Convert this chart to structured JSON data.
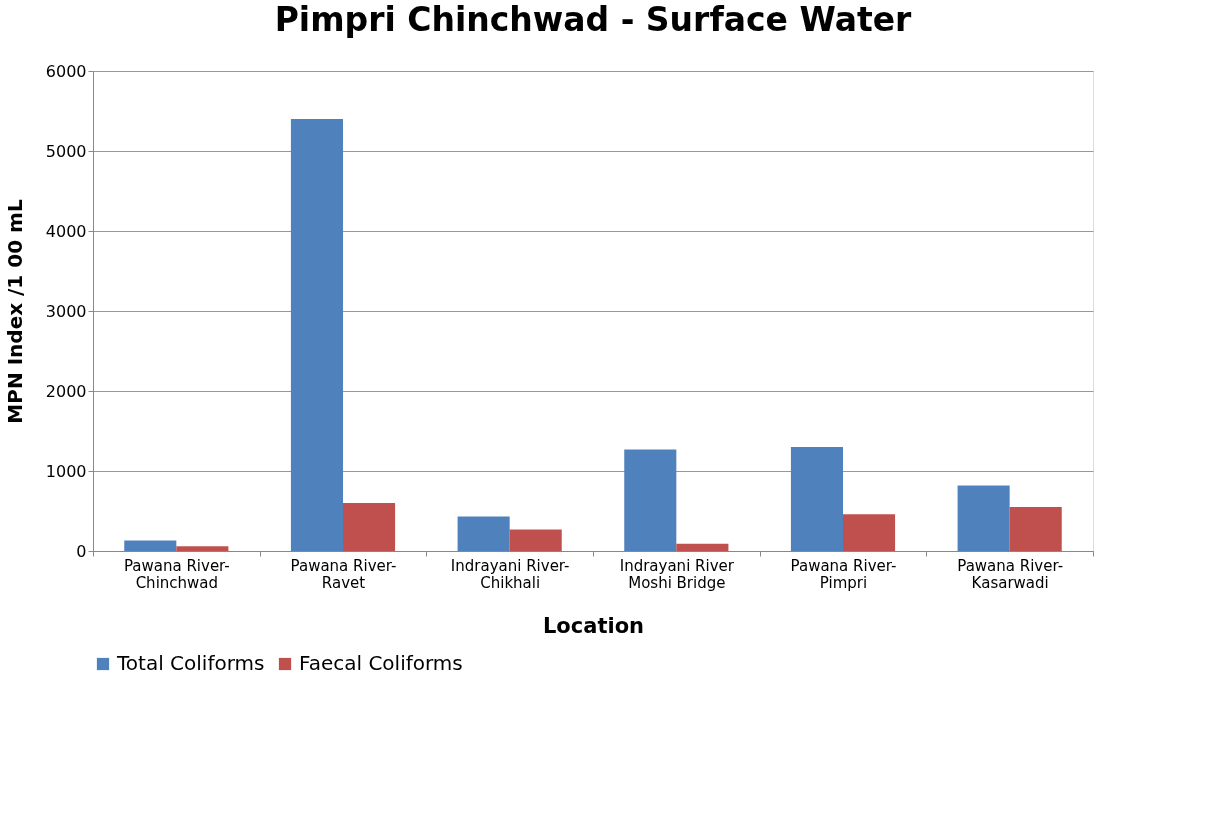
{
  "chart_data": {
    "type": "bar",
    "title": "Pimpri Chinchwad - Surface Water",
    "xlabel": "Location",
    "ylabel": "MPN Index /1 00 mL",
    "categories": [
      "Pawana River-\nChinchwad",
      "Pawana River-\nRavet",
      "Indrayani River-\nChikhali",
      "Indrayani River\nMoshi Bridge",
      "Pawana River-\nPimpri",
      "Pawana River-\nKasarwadi"
    ],
    "series": [
      {
        "name": "Total Coliforms",
        "color": "#4f81bd",
        "values": [
          130,
          5400,
          430,
          1270,
          1300,
          820
        ]
      },
      {
        "name": "Faecal Coliforms",
        "color": "#c0504d",
        "values": [
          60,
          600,
          270,
          90,
          460,
          550
        ]
      }
    ],
    "ylim": [
      0,
      6000
    ],
    "yticks": [
      0,
      1000,
      2000,
      3000,
      4000,
      5000,
      6000
    ],
    "grid": "y",
    "legend": "bottom"
  }
}
